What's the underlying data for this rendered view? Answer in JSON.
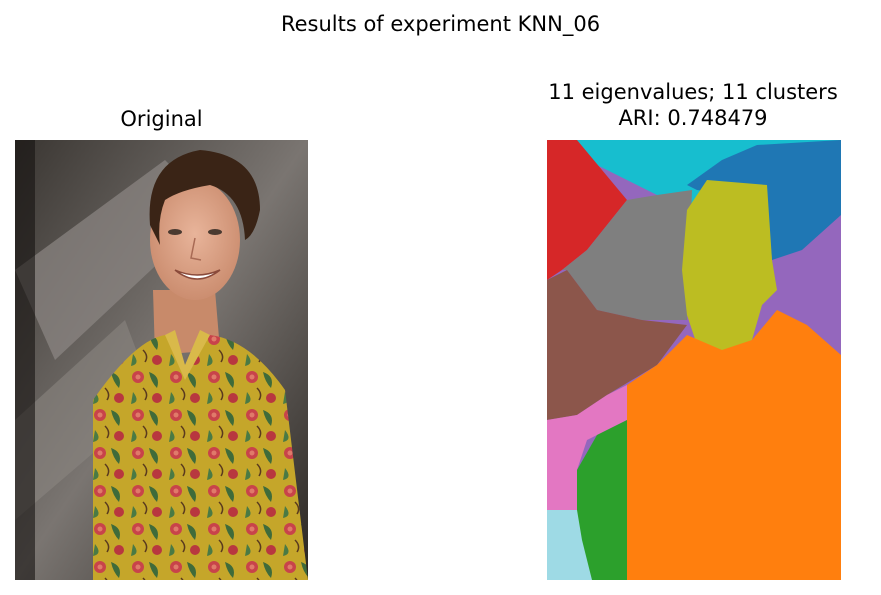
{
  "figure": {
    "suptitle": "Results of experiment KNN_06"
  },
  "panels": [
    {
      "title": "Original",
      "image": "portrait-photo"
    },
    {
      "title_line1": "11 eigenvalues; 11 clusters",
      "title_line2": "ARI: 0.748479",
      "image": "segmentation-map"
    }
  ],
  "segment_colors": {
    "red": "#d62728",
    "cyan": "#17becf",
    "blue": "#1f77b4",
    "gray": "#7f7f7f",
    "olive": "#bcbd22",
    "purple": "#9467bd",
    "brown": "#8c564b",
    "orange": "#ff7f0e",
    "pink": "#e377c2",
    "green": "#2ca02c",
    "lightblue": "#9edae5"
  }
}
